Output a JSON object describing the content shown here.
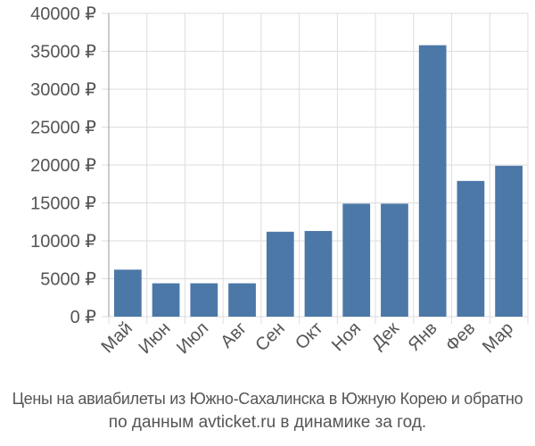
{
  "chart_data": {
    "type": "bar",
    "categories": [
      "Май",
      "Июн",
      "Июл",
      "Авг",
      "Сен",
      "Окт",
      "Ноя",
      "Дек",
      "Янв",
      "Фев",
      "Мар"
    ],
    "values": [
      6200,
      4400,
      4400,
      4400,
      11200,
      11300,
      14900,
      14900,
      35800,
      17900,
      19900
    ],
    "y_ticks": [
      "0 ₽",
      "5000 ₽",
      "10000 ₽",
      "15000 ₽",
      "20000 ₽",
      "25000 ₽",
      "30000 ₽",
      "35000 ₽",
      "40000 ₽"
    ],
    "ylim": [
      0,
      40000
    ],
    "y_step": 5000,
    "grid": true,
    "bar_color": "#4c78a8",
    "grid_color": "#dddddd",
    "axis_color": "#999999",
    "label_color": "#555555"
  },
  "caption": {
    "line1": "Цены на авиабилеты из Южно-Сахалинска в Южную Корею и обратно",
    "line2": "по данным avticket.ru в динамике за год."
  }
}
